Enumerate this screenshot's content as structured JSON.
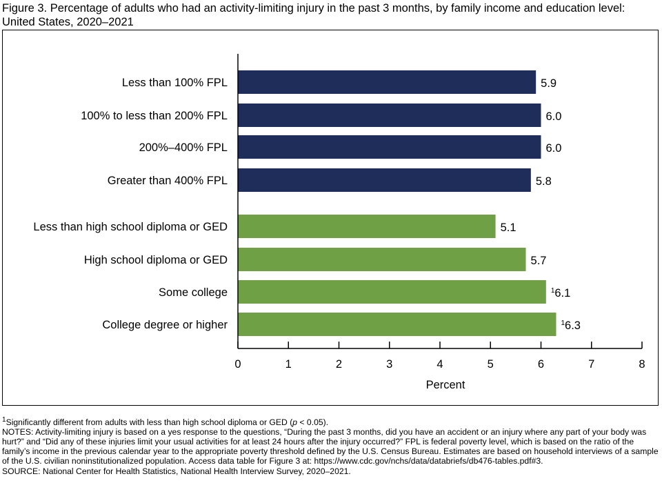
{
  "title": "Figure 3. Percentage of adults who had an activity-limiting injury in the past 3 months, by family income and education level: United States, 2020–2021",
  "chart_data": {
    "type": "bar",
    "orientation": "horizontal",
    "categories": [
      "Less than 100% FPL",
      "100% to less than 200% FPL",
      "200%–400% FPL",
      "Greater than 400% FPL",
      "Less than high school diploma or GED",
      "High school diploma or GED",
      "Some college",
      "College degree or higher"
    ],
    "values": [
      5.9,
      6.0,
      6.0,
      5.8,
      5.1,
      5.7,
      6.1,
      6.3
    ],
    "value_labels": [
      "5.9",
      "6.0",
      "6.0",
      "5.8",
      "5.1",
      "5.7",
      "6.1",
      "6.3"
    ],
    "footnote_marks": [
      "",
      "",
      "",
      "",
      "",
      "",
      "1",
      "1"
    ],
    "groups": [
      {
        "name": "Family income",
        "color": "#1f2d5b",
        "indices": [
          0,
          1,
          2,
          3
        ]
      },
      {
        "name": "Education level",
        "color": "#70a046",
        "indices": [
          4,
          5,
          6,
          7
        ]
      }
    ],
    "xlabel": "Percent",
    "ylabel": "",
    "xlim": [
      0,
      8
    ],
    "xticks": [
      "0",
      "1",
      "2",
      "3",
      "4",
      "5",
      "6",
      "7",
      "8"
    ],
    "grid": false
  },
  "notes": {
    "footnote_mark": "1",
    "footnote_text_pre": "Significantly different from adults with less than high school diploma or GED (",
    "footnote_p": "p",
    "footnote_text_post": " < 0.05).",
    "notes_text": "NOTES: Activity-limiting injury is based on a yes response to the questions, “During the past 3 months, did you have an accident or an injury where any part of your body was hurt?” and “Did any of these injuries limit your usual activities for at least 24 hours after the injury occurred?” FPL is federal poverty level, which is based on the ratio of the family’s income in the previous calendar year to the appropriate poverty threshold defined by the U.S. Census Bureau. Estimates are based on household interviews of a sample of the U.S. civilian noninstitutionalized population. Access data table for Figure 3 at: https://www.cdc.gov/nchs/data/databriefs/db476-tables.pdf#3.",
    "source_text": "SOURCE: National Center for Health Statistics, National Health Interview Survey, 2020–2021."
  }
}
